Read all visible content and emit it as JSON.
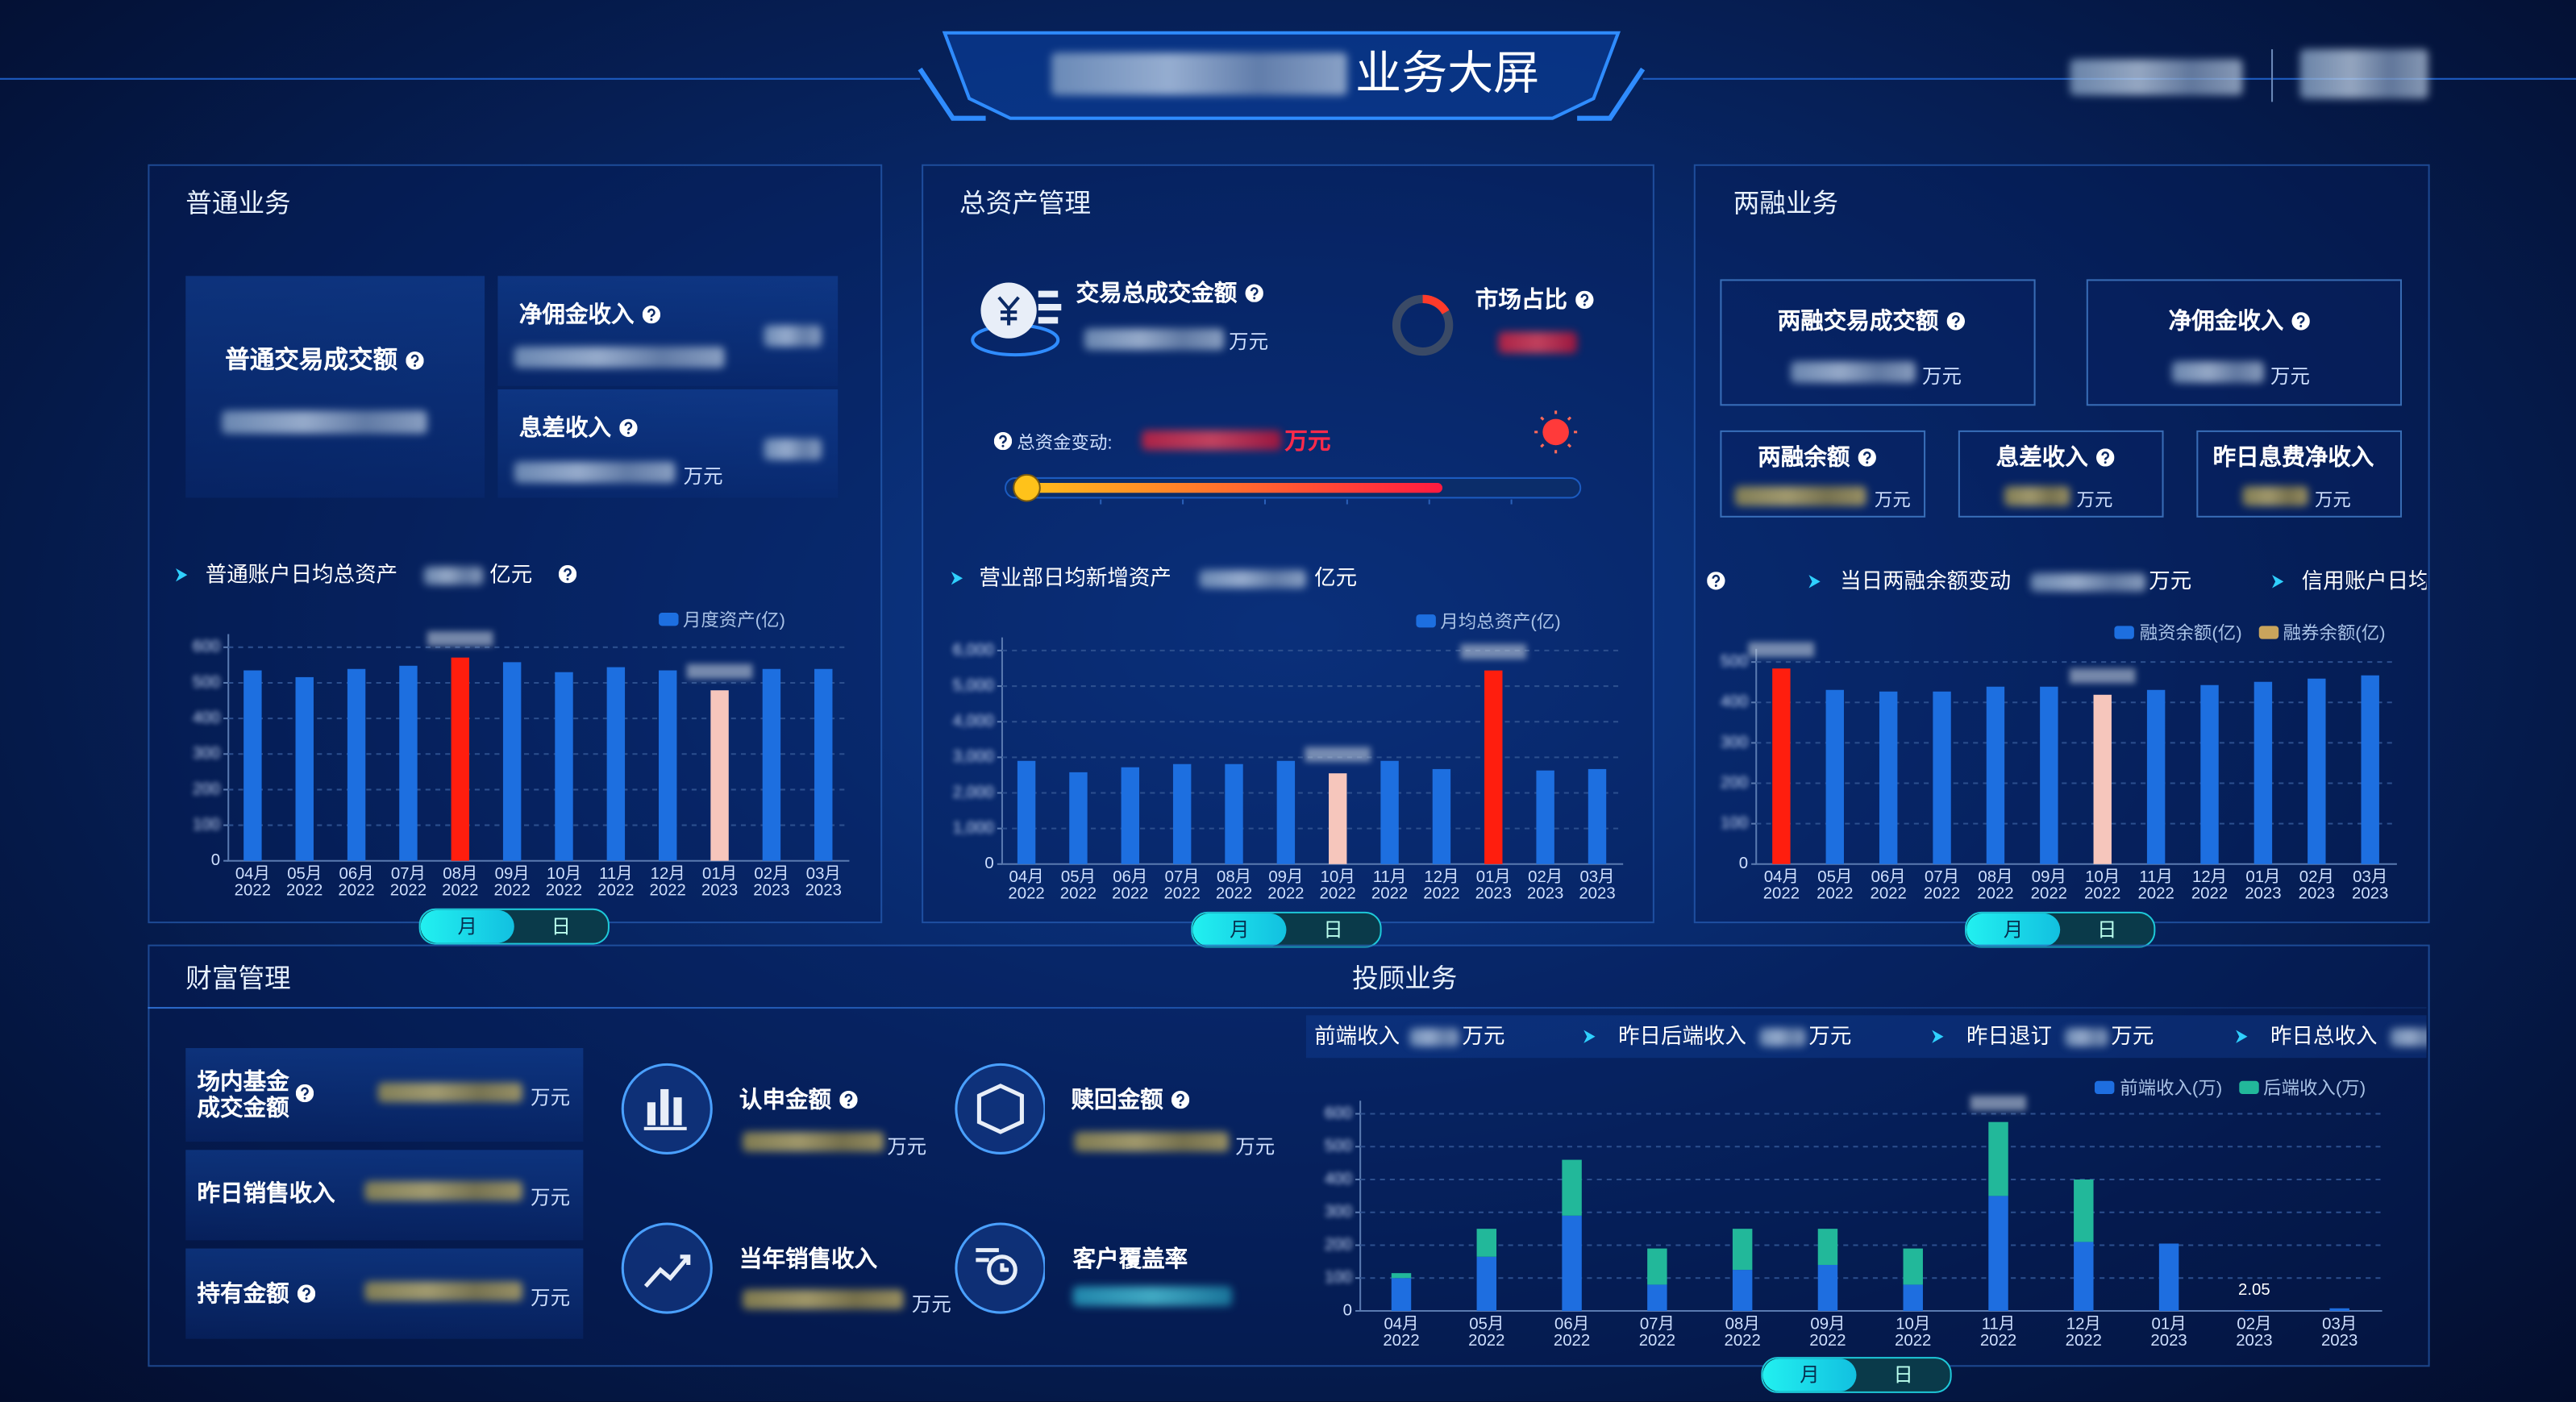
{
  "header": {
    "title": "业务大屏"
  },
  "general": {
    "title": "普通业务",
    "kpis": [
      {
        "label": "普通交易成交额"
      },
      {
        "label": "净佣金收入"
      },
      {
        "label": "息差收入",
        "unit": "万元"
      }
    ],
    "toggle": [
      "月",
      "日"
    ]
  },
  "assets": {
    "title": "总资产管理",
    "kpis": [
      {
        "label": "交易总成交金额",
        "unit": "万元"
      },
      {
        "label": "市场占比"
      }
    ],
    "change_label": "总资金变动:",
    "change_unit": "万元",
    "toggle": [
      "月",
      "日"
    ]
  },
  "margin": {
    "title": "两融业务",
    "kpis": [
      {
        "label": "两融交易成交额",
        "unit": "万元"
      },
      {
        "label": "净佣金收入",
        "unit": "万元"
      },
      {
        "label": "两融余额",
        "unit": "万元"
      },
      {
        "label": "息差收入",
        "unit": "万元"
      },
      {
        "label": "昨日息费净收入",
        "unit": "万元"
      }
    ],
    "ticker": [
      {
        "label": "当日两融余额变动",
        "unit": "万元"
      },
      {
        "label": "信用账户日均"
      }
    ],
    "toggle": [
      "月",
      "日"
    ]
  },
  "wealth": {
    "title": "财富管理",
    "kpis": [
      {
        "label": "场内基金\n成交金额",
        "unit": "万元"
      },
      {
        "label": "昨日销售收入",
        "unit": "万元"
      },
      {
        "label": "持有金额",
        "unit": "万元"
      },
      {
        "label": "认申金额",
        "unit": "万元"
      },
      {
        "label": "赎回金额",
        "unit": "万元"
      },
      {
        "label": "当年销售收入",
        "unit": "万元"
      },
      {
        "label": "客户覆盖率"
      }
    ]
  },
  "advisory": {
    "title": "投顾业务",
    "ticker": [
      {
        "label": "前端收入",
        "unit": "万元"
      },
      {
        "label": "昨日后端收入",
        "unit": "万元"
      },
      {
        "label": "昨日退订",
        "unit": "万元"
      },
      {
        "label": "昨日总收入"
      }
    ],
    "toggle": [
      "月",
      "日"
    ]
  },
  "chart_data": [
    {
      "type": "bar",
      "title": "普通账户日均总资产",
      "unit": "亿元",
      "categories": [
        "04月\n2022",
        "05月\n2022",
        "06月\n2022",
        "07月\n2022",
        "08月\n2022",
        "09月\n2022",
        "10月\n2022",
        "11月\n2022",
        "12月\n2022",
        "01月\n2023",
        "02月\n2023",
        "03月\n2023"
      ],
      "series": [
        {
          "name": "月度资产(亿)",
          "color": "#1d6fe0",
          "values": [
            535,
            516,
            539,
            548,
            571,
            558,
            530,
            544,
            535,
            479,
            539,
            539
          ]
        }
      ],
      "ylim": [
        0,
        600
      ],
      "yticks": [
        0,
        100,
        200,
        300,
        400,
        500,
        600
      ],
      "grid": true,
      "legend": "top-right",
      "max_color": "#ff1e0e",
      "min_color": "#f6c6bc"
    },
    {
      "type": "bar",
      "title": "营业部日均新增资产",
      "unit": "亿元",
      "categories": [
        "04月\n2022",
        "05月\n2022",
        "06月\n2022",
        "07月\n2022",
        "08月\n2022",
        "09月\n2022",
        "10月\n2022",
        "11月\n2022",
        "12月\n2022",
        "01月\n2023",
        "02月\n2023",
        "03月\n2023"
      ],
      "series": [
        {
          "name": "月均总资产(亿)",
          "color": "#1d6fe0",
          "values": [
            2900,
            2580,
            2720,
            2810,
            2810,
            2900,
            2550,
            2900,
            2670,
            5440,
            2630,
            2670
          ]
        }
      ],
      "ylim": [
        0,
        6000
      ],
      "yticks": [
        0,
        {
          "value": 1000,
          "label": "1,000"
        },
        {
          "value": 2000,
          "label": "2,000"
        },
        {
          "value": 3000,
          "label": "3,000"
        },
        {
          "value": 4000,
          "label": "4,000"
        },
        {
          "value": 5000,
          "label": "5,000"
        },
        {
          "value": 6000,
          "label": "6,000"
        }
      ],
      "grid": true,
      "legend": "top-right",
      "max_color": "#ff1e0e",
      "min_color": "#f6c6bc"
    },
    {
      "type": "bar",
      "categories": [
        "04月\n2022",
        "05月\n2022",
        "06月\n2022",
        "07月\n2022",
        "08月\n2022",
        "09月\n2022",
        "10月\n2022",
        "11月\n2022",
        "12月\n2022",
        "01月\n2023",
        "02月\n2023",
        "03月\n2023"
      ],
      "series": [
        {
          "name": "融资余额(亿)",
          "color": "#1d6fe0",
          "values": [
            484,
            431,
            427,
            427,
            439,
            439,
            419,
            431,
            443,
            451,
            459,
            467
          ]
        },
        {
          "name": "融券余额(亿)",
          "color": "#c9a45c",
          "values": [
            null,
            null,
            null,
            null,
            null,
            null,
            null,
            null,
            null,
            null,
            null,
            null
          ]
        }
      ],
      "ylim": [
        0,
        500
      ],
      "yticks": [
        0,
        100,
        200,
        300,
        400,
        500
      ],
      "grid": true,
      "legend": "top-right",
      "max_color": "#ff1e0e",
      "min_color": "#f6c6bc"
    },
    {
      "type": "bar",
      "stacked": true,
      "categories": [
        "04月\n2022",
        "05月\n2022",
        "06月\n2022",
        "07月\n2022",
        "08月\n2022",
        "09月\n2022",
        "10月\n2022",
        "11月\n2022",
        "12月\n2022",
        "01月\n2023",
        "02月\n2023",
        "03月\n2023"
      ],
      "series": [
        {
          "name": "前端收入(万)",
          "color": "#1e6ee0",
          "values": [
            100,
            165,
            290,
            80,
            125,
            140,
            80,
            350,
            210,
            205,
            2.05,
            8
          ]
        },
        {
          "name": "后端收入(万)",
          "color": "#22b89a",
          "values": [
            15,
            85,
            170,
            110,
            125,
            110,
            110,
            225,
            190,
            0,
            0,
            0
          ]
        }
      ],
      "ylim": [
        0,
        600
      ],
      "yticks": [
        0,
        100,
        200,
        300,
        400,
        500,
        600
      ],
      "grid": true,
      "legend": "top-right"
    }
  ]
}
